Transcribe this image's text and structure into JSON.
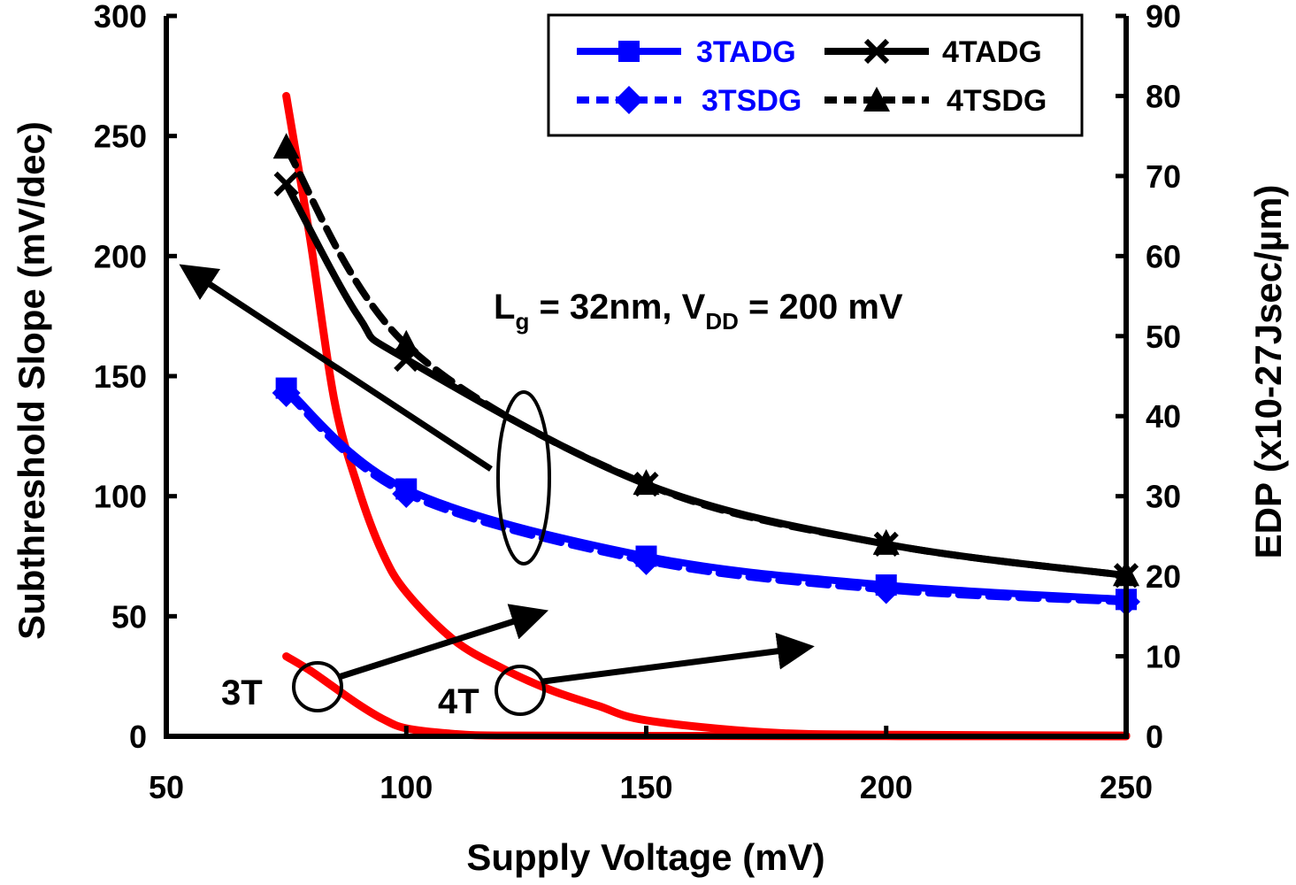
{
  "chart_data": {
    "type": "line",
    "title": "",
    "xlabel": "Supply Voltage (mV)",
    "ylabel": "Subthreshold Slope (mV/dec)",
    "y2label": "EDP (x10-27Jsec/µm)",
    "xlim": [
      50,
      250
    ],
    "ylim": [
      0,
      300
    ],
    "y2lim": [
      0,
      90
    ],
    "x_ticks": [
      "50",
      "100",
      "150",
      "200",
      "250"
    ],
    "y_ticks": [
      "0",
      "50",
      "100",
      "150",
      "200",
      "250",
      "300"
    ],
    "y2_ticks": [
      "0",
      "10",
      "20",
      "30",
      "40",
      "50",
      "60",
      "70",
      "80",
      "90"
    ],
    "annotation": {
      "main": "L",
      "sub1": "g",
      "mid": " = 32nm, V",
      "sub2": "DD",
      "end": " = 200 mV"
    },
    "callouts": [
      "3T",
      "4T"
    ],
    "series": [
      {
        "name": "3TADG",
        "axis": "left",
        "color": "#0000ff",
        "dash": "solid",
        "marker": "square",
        "x": [
          75,
          100,
          150,
          200,
          250
        ],
        "y": [
          145,
          103,
          75,
          63,
          57
        ]
      },
      {
        "name": "4TADG",
        "axis": "left",
        "color": "#000000",
        "dash": "solid",
        "marker": "x",
        "x": [
          75,
          90,
          100,
          150,
          200,
          250
        ],
        "y": [
          230,
          175,
          157,
          105,
          80,
          67
        ]
      },
      {
        "name": "3TSDG",
        "axis": "left",
        "color": "#0000ff",
        "dash": "dashed",
        "marker": "diamond",
        "x": [
          75,
          100,
          150,
          200,
          250
        ],
        "y": [
          143,
          101,
          73,
          61,
          56
        ]
      },
      {
        "name": "4TSDG",
        "axis": "left",
        "color": "#000000",
        "dash": "dashed",
        "marker": "triangle",
        "x": [
          75,
          100,
          150,
          200,
          250
        ],
        "y": [
          245,
          163,
          105,
          80,
          67
        ]
      },
      {
        "name": "3T EDP",
        "axis": "right",
        "color": "#ff0000",
        "dash": "solid",
        "marker": "none",
        "x": [
          75,
          80,
          85,
          90,
          95,
          100,
          110,
          120,
          150,
          200,
          250
        ],
        "y": [
          10,
          8.2,
          6.1,
          4.0,
          2.2,
          1.0,
          0.3,
          0.1,
          0.05,
          0.02,
          0.0
        ]
      },
      {
        "name": "4T EDP",
        "axis": "right",
        "color": "#ff0000",
        "dash": "solid",
        "marker": "none",
        "x": [
          75,
          80,
          85,
          90,
          95,
          100,
          110,
          120,
          130,
          140,
          150,
          175,
          200,
          250
        ],
        "y": [
          80,
          62,
          42,
          31,
          23,
          18,
          12,
          8.5,
          5.8,
          3.8,
          2.0,
          0.5,
          0.2,
          0.1
        ]
      }
    ]
  }
}
